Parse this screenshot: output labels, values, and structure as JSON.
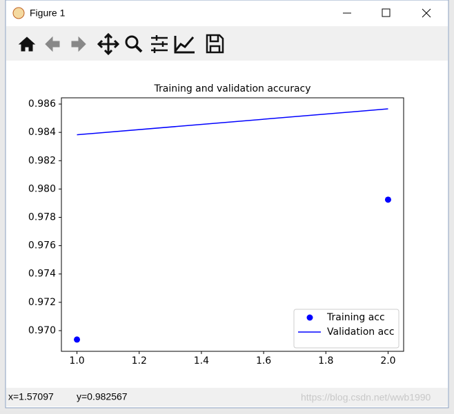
{
  "window": {
    "title": "Figure 1",
    "status_x": "x=1.57097",
    "status_y": "y=0.982567",
    "watermark": "https://blog.csdn.net/wwb1990"
  },
  "chart_data": {
    "type": "line",
    "title": "Training and validation accuracy",
    "series": [
      {
        "name": "Training acc",
        "color": "#0000ff",
        "marker": "o",
        "x": [
          1,
          2
        ],
        "values": [
          0.96937,
          0.97925
        ]
      },
      {
        "name": "Validation acc",
        "color": "#0000ff",
        "linestyle": "-",
        "x": [
          1,
          2
        ],
        "values": [
          0.98383,
          0.98566
        ]
      }
    ],
    "xlim": [
      0.95,
      2.05
    ],
    "xticks": [
      {
        "value": 1,
        "label": "1.0"
      },
      {
        "value": 1.2,
        "label": "1.2"
      },
      {
        "value": 1.4,
        "label": "1.4"
      },
      {
        "value": 1.6,
        "label": "1.6"
      },
      {
        "value": 1.8,
        "label": "1.8"
      },
      {
        "value": 2,
        "label": "2.0"
      }
    ],
    "ylim": [
      0.96854,
      0.98644
    ],
    "yticks": [
      {
        "value": 0.97,
        "label": "0.970"
      },
      {
        "value": 0.972,
        "label": "0.972"
      },
      {
        "value": 0.974,
        "label": "0.974"
      },
      {
        "value": 0.976,
        "label": "0.976"
      },
      {
        "value": 0.978,
        "label": "0.978"
      },
      {
        "value": 0.98,
        "label": "0.980"
      },
      {
        "value": 0.982,
        "label": "0.982"
      },
      {
        "value": 0.984,
        "label": "0.984"
      },
      {
        "value": 0.986,
        "label": "0.986"
      }
    ],
    "grid": false,
    "legend": "lower right"
  }
}
